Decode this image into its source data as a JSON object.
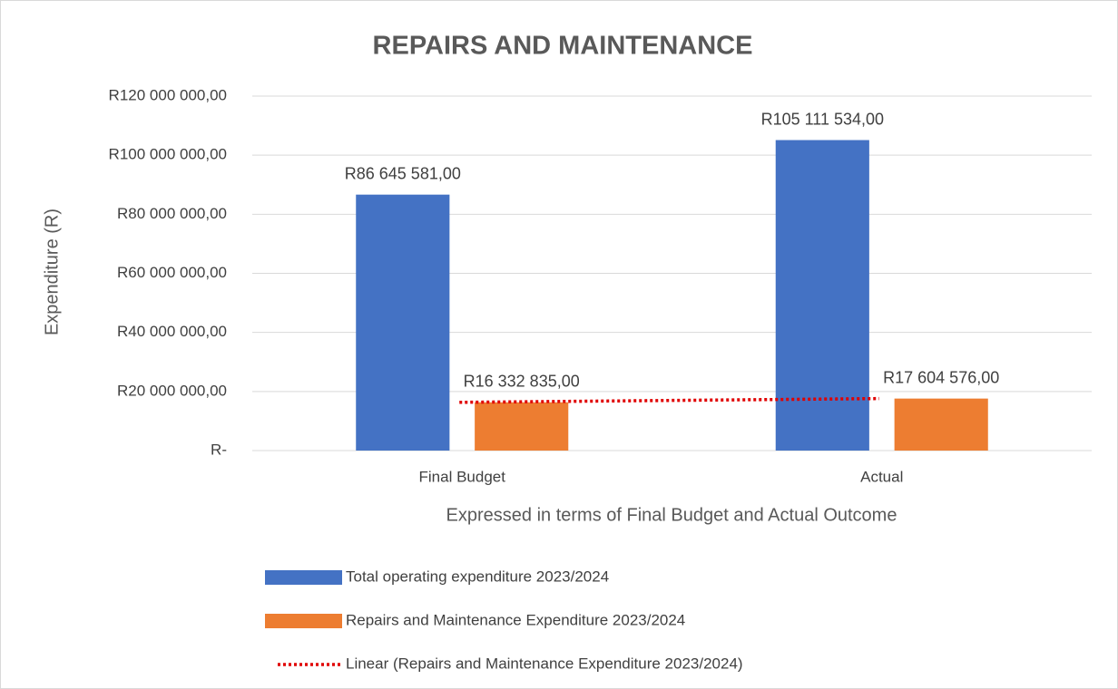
{
  "chart_data": {
    "type": "bar",
    "title": "REPAIRS AND MAINTENANCE",
    "y_label": "Expenditure (R)",
    "x_label": "Expressed in terms of Final Budget and Actual Outcome",
    "categories": [
      "Final Budget",
      "Actual"
    ],
    "series": [
      {
        "name": "Total operating expenditure 2023/2024",
        "color": "#4472c4",
        "values": [
          86645581,
          105111534
        ],
        "value_labels": [
          "R86 645 581,00",
          "R105 111 534,00"
        ]
      },
      {
        "name": "Repairs and Maintenance Expenditure 2023/2024",
        "color": "#ed7d31",
        "values": [
          16332835,
          17604576
        ],
        "value_labels": [
          "R16 332 835,00",
          "R17 604 576,00"
        ],
        "trendline": {
          "type": "linear",
          "name": "Linear (Repairs and Maintenance Expenditure 2023/2024)",
          "color": "#e00000"
        }
      }
    ],
    "ylim": [
      0,
      120000000
    ],
    "yticks": [
      {
        "value": 0,
        "label": "R-"
      },
      {
        "value": 20000000,
        "label": "R20 000 000,00"
      },
      {
        "value": 40000000,
        "label": "R40 000 000,00"
      },
      {
        "value": 60000000,
        "label": "R60 000 000,00"
      },
      {
        "value": 80000000,
        "label": "R80 000 000,00"
      },
      {
        "value": 100000000,
        "label": "R100 000 000,00"
      },
      {
        "value": 120000000,
        "label": "R120 000 000,00"
      }
    ],
    "grid": true,
    "legend": "bottom"
  }
}
